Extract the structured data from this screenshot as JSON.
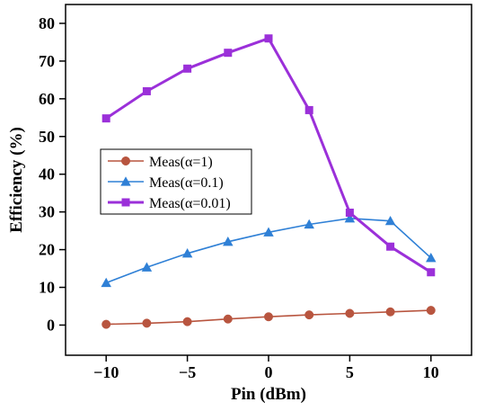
{
  "chart_data": {
    "type": "line",
    "xlabel": "Pin (dBm)",
    "ylabel": "Efficiency (%)",
    "xlim": [
      -12.5,
      12.5
    ],
    "ylim": [
      -8,
      85
    ],
    "xticks": [
      -10,
      -5,
      0,
      5,
      10
    ],
    "yticks": [
      0,
      10,
      20,
      30,
      40,
      50,
      60,
      70,
      80
    ],
    "xtick_labels": [
      "−10",
      "−5",
      "0",
      "5",
      "10"
    ],
    "ytick_labels": [
      "0",
      "10",
      "20",
      "30",
      "40",
      "50",
      "60",
      "70",
      "80"
    ],
    "grid": false,
    "legend_position": "center-left",
    "series": [
      {
        "name": "Meas(α=1)",
        "color": "#b8553f",
        "marker": "circle",
        "x": [
          -10,
          -7.5,
          -5,
          -2.5,
          0,
          2.5,
          5,
          7.5,
          10
        ],
        "y": [
          0.2,
          0.5,
          0.9,
          1.6,
          2.2,
          2.7,
          3.1,
          3.5,
          3.9
        ]
      },
      {
        "name": "Meas(α=0.1)",
        "color": "#2f80d6",
        "marker": "triangle",
        "x": [
          -10,
          -7.5,
          -5,
          -2.5,
          0,
          2.5,
          5,
          7.5,
          10
        ],
        "y": [
          11.2,
          15.3,
          19,
          22.1,
          24.6,
          26.7,
          28.3,
          27.6,
          17.8
        ]
      },
      {
        "name": "Meas(α=0.01)",
        "color": "#9b30d9",
        "marker": "square",
        "x": [
          -10,
          -7.5,
          -5,
          -2.5,
          0,
          2.5,
          5,
          7.5,
          10
        ],
        "y": [
          54.8,
          62,
          68,
          72.2,
          76,
          57,
          29.8,
          20.8,
          14
        ]
      }
    ]
  }
}
